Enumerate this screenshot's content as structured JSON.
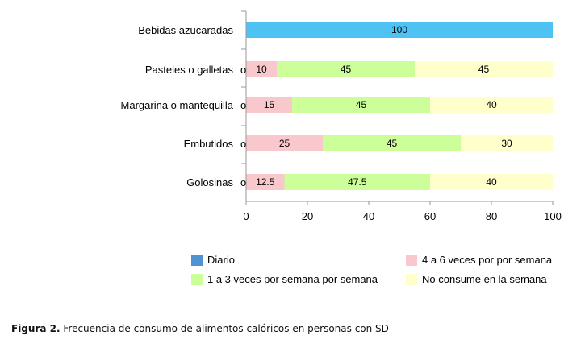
{
  "chart_data": {
    "type": "bar",
    "orientation": "horizontal",
    "stacked": true,
    "categories": [
      "Bebidas azucaradas",
      "Pasteles o galletas",
      "Margarina o mantequilla",
      "Embutidos",
      "Golosinas"
    ],
    "category_suffix": "o",
    "series": [
      {
        "name": "Diario",
        "color": "#4fc2f4",
        "values": [
          100,
          0,
          0,
          0,
          0
        ]
      },
      {
        "name": "4 a 6 veces por por semana",
        "color": "#f8c8cc",
        "values": [
          0,
          10,
          15,
          25,
          12.5
        ]
      },
      {
        "name": "1 a 3 veces por semana por semana",
        "color": "#ccff99",
        "values": [
          0,
          45,
          45,
          45,
          47.5
        ]
      },
      {
        "name": "No consume en la semana",
        "color": "#ffffcc",
        "values": [
          0,
          45,
          40,
          30,
          40
        ]
      }
    ],
    "data_labels": [
      [
        "100",
        null,
        null,
        null
      ],
      [
        null,
        "10",
        "45",
        "45"
      ],
      [
        null,
        "15",
        "45",
        "40"
      ],
      [
        null,
        "25",
        "45",
        "30"
      ],
      [
        null,
        "12.5",
        "47.5",
        "40"
      ]
    ],
    "xlim": [
      0,
      100
    ],
    "xticks": [
      "0",
      "20",
      "40",
      "60",
      "80",
      "100"
    ],
    "legend_swatch_colors": [
      "#4f93d4",
      "#f8c8cc",
      "#ccff99",
      "#ffffcc"
    ],
    "legend": "bottom",
    "grid": false
  },
  "caption": {
    "label": "Figura 2.",
    "text": "Frecuencia de consumo de alimentos calóricos en personas  con SD"
  }
}
